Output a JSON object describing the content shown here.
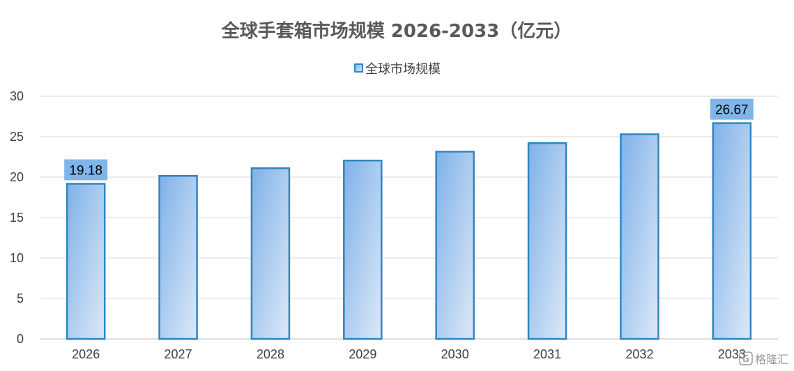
{
  "chart_data": {
    "type": "bar",
    "title": "全球手套箱市场规模 2026-2033（亿元）",
    "categories": [
      "2026",
      "2027",
      "2028",
      "2029",
      "2030",
      "2031",
      "2032",
      "2033"
    ],
    "series": [
      {
        "name": "全球市场规模",
        "values": [
          19.18,
          20.15,
          21.1,
          22.05,
          23.15,
          24.2,
          25.3,
          26.67
        ]
      }
    ],
    "data_labels": [
      {
        "index": 0,
        "text": "19.18"
      },
      {
        "index": 7,
        "text": "26.67"
      }
    ],
    "ylim": [
      0,
      30
    ],
    "yticks": [
      0,
      5,
      10,
      15,
      20,
      25,
      30
    ],
    "grid": true,
    "legend_position": "top",
    "colors": {
      "bar_gradient_start": "#7fb1e8",
      "bar_gradient_end": "#dce9f8",
      "bar_border": "#2e86c1",
      "label_box": "#7eb6ea",
      "grid": "#d9d9d9"
    }
  },
  "watermark": {
    "text": "格隆汇",
    "icon": "gelonghui-logo-icon"
  }
}
